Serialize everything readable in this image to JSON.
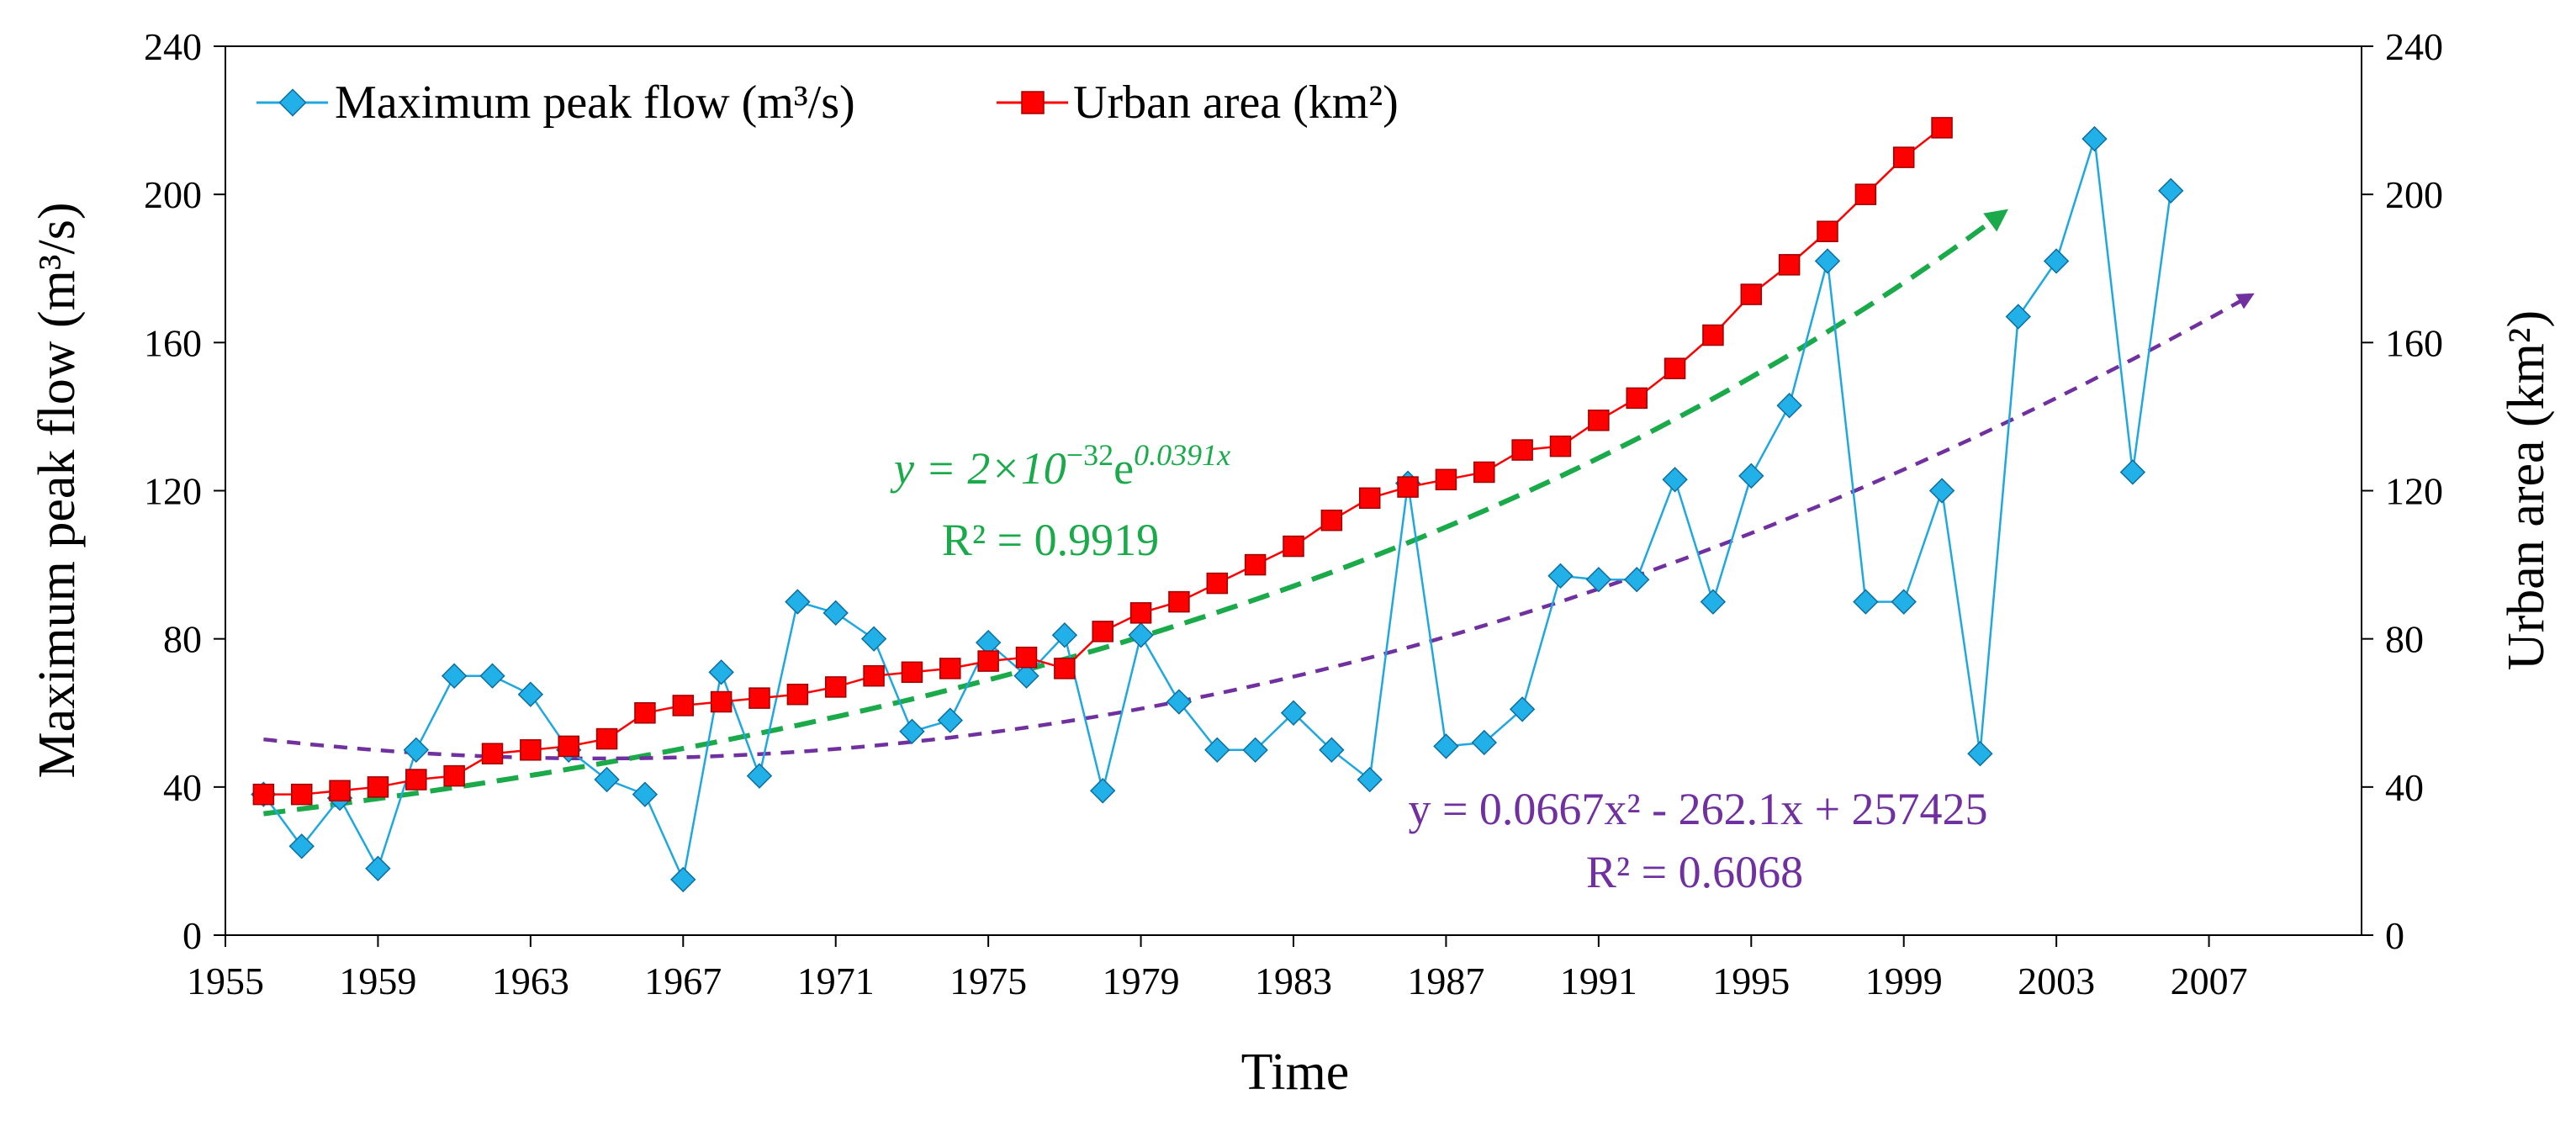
{
  "chart_data": {
    "type": "line",
    "xlabel": "Time",
    "ylabel_left": "Maximum peak flow (m³/s)",
    "ylabel_right": "Urban area (km²)",
    "xlim": [
      1955,
      2011
    ],
    "ylim_left": [
      0,
      240
    ],
    "ylim_right": [
      0,
      240
    ],
    "x_ticks": [
      1955,
      1959,
      1963,
      1967,
      1971,
      1975,
      1979,
      1983,
      1987,
      1991,
      1995,
      1999,
      2003,
      2007
    ],
    "y_ticks_left": [
      0,
      40,
      80,
      120,
      160,
      200,
      240
    ],
    "y_ticks_right": [
      0,
      40,
      80,
      120,
      160,
      200,
      240
    ],
    "legend_position": "top-left",
    "colors": {
      "peak_flow": "#1fa8e0",
      "peak_marker": "#21b0e8",
      "urban_area": "#ff0000",
      "exp_trend": "#1aaa4a",
      "poly_trend": "#7030a0"
    },
    "series": [
      {
        "name": "Maximum peak flow (m³/s)",
        "axis": "left",
        "marker": "diamond",
        "x": [
          1956,
          1957,
          1958,
          1959,
          1960,
          1961,
          1962,
          1963,
          1964,
          1965,
          1966,
          1967,
          1968,
          1969,
          1970,
          1971,
          1972,
          1973,
          1974,
          1975,
          1976,
          1977,
          1978,
          1979,
          1980,
          1981,
          1982,
          1983,
          1984,
          1985,
          1986,
          1987,
          1988,
          1989,
          1990,
          1991,
          1992,
          1993,
          1994,
          1995,
          1996,
          1997,
          1998,
          1999,
          2000,
          2001,
          2002,
          2003,
          2004,
          2005,
          2006
        ],
        "values": [
          38,
          24,
          37,
          18,
          50,
          70,
          70,
          65,
          50,
          42,
          38,
          15,
          71,
          43,
          90,
          87,
          80,
          55,
          58,
          79,
          70,
          81,
          39,
          81,
          63,
          50,
          50,
          60,
          50,
          42,
          122,
          51,
          52,
          61,
          97,
          96,
          96,
          123,
          90,
          124,
          143,
          182,
          90,
          90,
          120,
          49,
          167,
          182,
          215,
          125,
          201
        ]
      },
      {
        "name": "Urban area (km²)",
        "axis": "right",
        "marker": "square",
        "x": [
          1956,
          1957,
          1958,
          1959,
          1960,
          1961,
          1962,
          1963,
          1964,
          1965,
          1966,
          1967,
          1968,
          1969,
          1970,
          1971,
          1972,
          1973,
          1974,
          1975,
          1976,
          1977,
          1978,
          1979,
          1980,
          1981,
          1982,
          1983,
          1984,
          1985,
          1986,
          1987,
          1988,
          1989,
          1990,
          1991,
          1992,
          1993,
          1994,
          1995,
          1996,
          1997,
          1998,
          1999,
          2000
        ],
        "values": [
          38,
          38,
          39,
          40,
          42,
          43,
          49,
          50,
          51,
          53,
          60,
          62,
          63,
          64,
          65,
          67,
          70,
          71,
          72,
          74,
          75,
          72,
          82,
          87,
          90,
          95,
          100,
          105,
          112,
          118,
          121,
          123,
          125,
          131,
          132,
          139,
          145,
          153,
          162,
          173,
          181,
          190,
          200,
          210,
          218
        ]
      }
    ],
    "trendlines": [
      {
        "name": "exponential",
        "fits": "Urban area (km²)",
        "equation_prefix": "y = 2×10",
        "equation_exp": "−32",
        "equation_e": "e",
        "equation_power": "0.0391x",
        "r2_label": "R² = 0.9919",
        "a": 2e-32,
        "b": 0.0391,
        "x_range": [
          1956,
          2001.5
        ]
      },
      {
        "name": "polynomial",
        "fits": "Maximum peak flow (m³/s)",
        "equation": "y = 0.0667x² - 262.1x + 257425",
        "r2_label": "R² = 0.6068",
        "x_range": [
          1956,
          2008
        ],
        "x_start": 1956,
        "y_start": 51,
        "vertex_x": 1964.8,
        "vertex_y": 47.7,
        "c2": 0.0667
      }
    ]
  }
}
